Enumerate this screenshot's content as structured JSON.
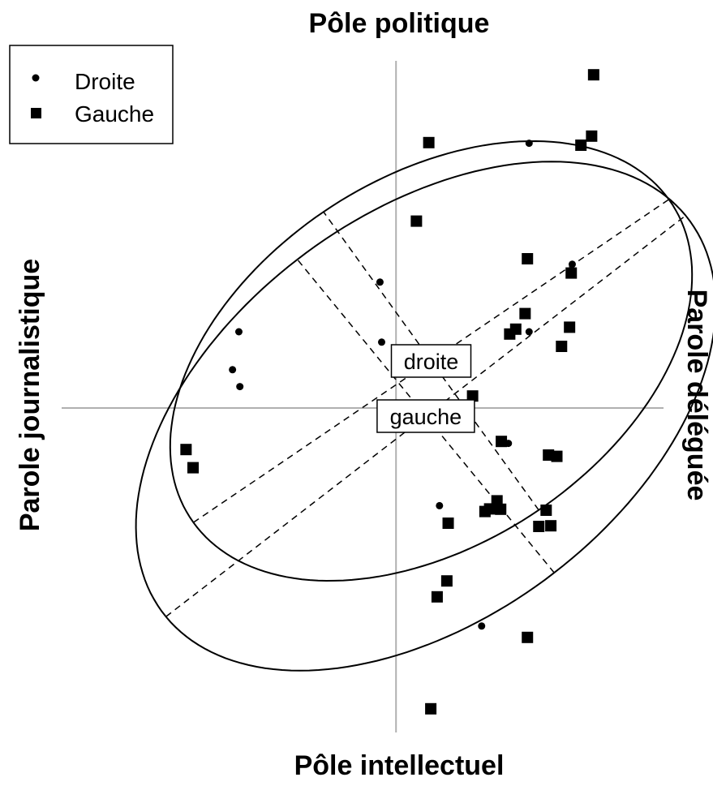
{
  "chart_data": {
    "type": "scatter",
    "title_top": "Pôle politique",
    "title_bottom": "Pôle intellectuel",
    "label_left": "Parole journalistique",
    "label_right": "Parole déléguée",
    "legend_position": "top-left",
    "grid": false,
    "xlim": [
      -10,
      8
    ],
    "ylim": [
      -10,
      11
    ],
    "series": [
      {
        "name": "Droite",
        "marker": "circle",
        "color": "#000000",
        "points": [
          [
            3.98,
            8.16
          ],
          [
            5.27,
            4.43
          ],
          [
            -0.48,
            3.88
          ],
          [
            3.98,
            2.35
          ],
          [
            -0.43,
            2.03
          ],
          [
            -4.7,
            2.35
          ],
          [
            -4.89,
            1.18
          ],
          [
            -4.67,
            0.66
          ],
          [
            3.36,
            -1.09
          ],
          [
            1.3,
            -3.01
          ],
          [
            2.56,
            -6.72
          ]
        ]
      },
      {
        "name": "Gauche",
        "marker": "square",
        "color": "#000000",
        "points": [
          [
            5.91,
            10.27
          ],
          [
            5.85,
            8.38
          ],
          [
            5.53,
            8.1
          ],
          [
            0.98,
            8.18
          ],
          [
            0.61,
            5.76
          ],
          [
            3.93,
            4.6
          ],
          [
            5.24,
            4.16
          ],
          [
            3.86,
            2.91
          ],
          [
            3.58,
            2.43
          ],
          [
            3.4,
            2.28
          ],
          [
            5.19,
            2.49
          ],
          [
            4.95,
            1.9
          ],
          [
            2.29,
            0.37
          ],
          [
            3.15,
            -1.03
          ],
          [
            4.56,
            -1.45
          ],
          [
            4.81,
            -1.49
          ],
          [
            3.02,
            -2.86
          ],
          [
            4.49,
            -3.15
          ],
          [
            2.66,
            -3.19
          ],
          [
            2.8,
            -3.11
          ],
          [
            3.13,
            -3.12
          ],
          [
            4.27,
            -3.65
          ],
          [
            4.63,
            -3.63
          ],
          [
            1.56,
            -3.55
          ],
          [
            1.52,
            -5.33
          ],
          [
            1.23,
            -5.82
          ],
          [
            3.93,
            -7.07
          ],
          [
            1.04,
            -9.27
          ],
          [
            -6.28,
            -1.28
          ],
          [
            -6.07,
            -1.84
          ]
        ]
      }
    ],
    "ellipses": [
      {
        "name": "droite",
        "label": "droite",
        "center": [
          1.05,
          1.45
        ],
        "semi_major": 8.68,
        "semi_minor": 5.61,
        "angle_deg": 35,
        "label_pos": [
          1.05,
          1.45
        ]
      },
      {
        "name": "gauche",
        "label": "gauche",
        "center": [
          0.89,
          -0.25
        ],
        "semi_major": 9.93,
        "semi_minor": 6.17,
        "angle_deg": 38.5,
        "label_pos": [
          0.89,
          -0.25
        ]
      }
    ],
    "legend": [
      {
        "label": "Droite",
        "marker": "circle"
      },
      {
        "label": "Gauche",
        "marker": "square"
      }
    ]
  }
}
